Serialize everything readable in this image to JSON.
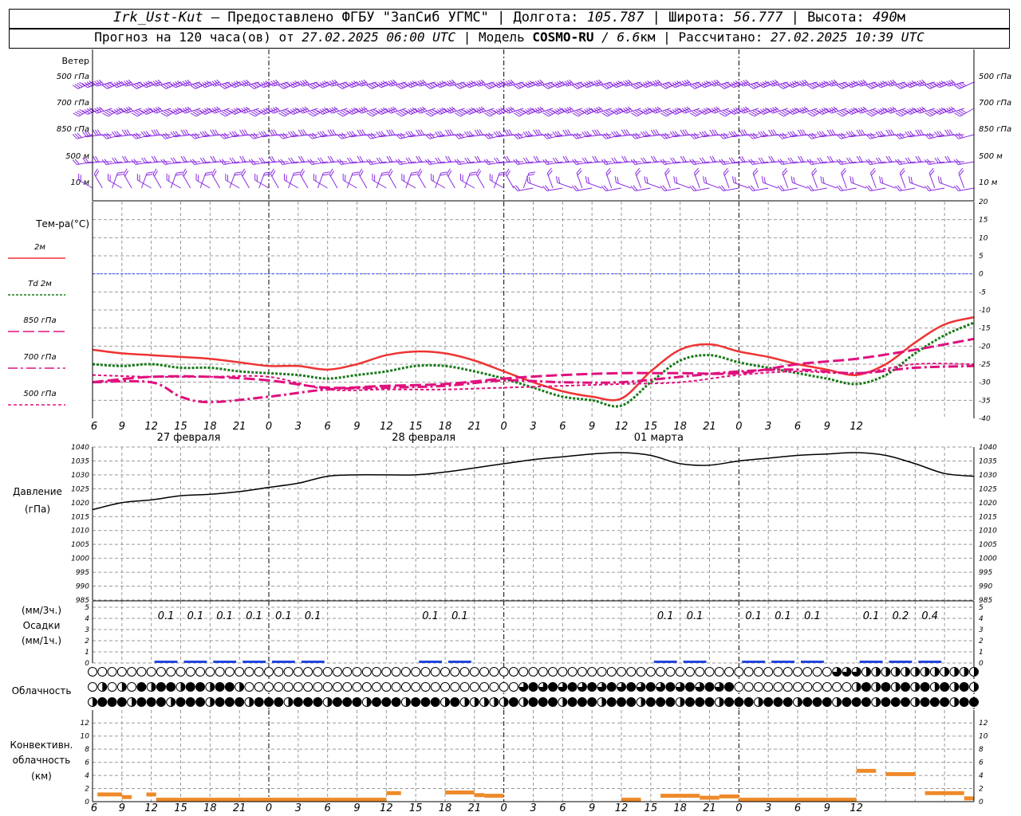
{
  "header": {
    "line1": {
      "station": "Irk_Ust-Kut",
      "provided": "– Предоставлено ФГБУ \"ЗапСиб УГМС\" | Долгота:",
      "lon": "105.787",
      "lat_label": "| Широта:",
      "lat": "56.777",
      "alt_label": "| Высота:",
      "alt": "490",
      "alt_unit": "м"
    },
    "line2": {
      "forecast": "Прогноз на 120 часа(ов) от",
      "init": "27.02.2025 06:00 UTC",
      "model_label": "| Модель",
      "model": "COSMO-RU",
      "res": "/ 6.6",
      "res_unit": "км",
      "calc_label": "| Рассчитано:",
      "calc": "27.02.2025 10:39 UTC"
    }
  },
  "hours": [
    "6",
    "9",
    "12",
    "15",
    "18",
    "21",
    "0",
    "3",
    "6",
    "9",
    "12",
    "15",
    "18",
    "21",
    "0",
    "3",
    "6",
    "9",
    "12",
    "15",
    "18",
    "21",
    "0",
    "3",
    "6",
    "9",
    "12"
  ],
  "dates": [
    "27 февраля",
    "28 февраля",
    "01 марта"
  ],
  "wind_panel": {
    "title": "Ветер",
    "levels": [
      "500 гПа",
      "700 гПа",
      "850 гПа",
      "500 м",
      "10  м"
    ]
  },
  "temp_panel": {
    "title": "Тем-ра(°C)",
    "legend": [
      {
        "label": "2м",
        "color": "#ee3333",
        "dash": ""
      },
      {
        "label": "Td  2м",
        "color": "#1a7a1a",
        "dash": "3,2"
      },
      {
        "label": "850 гПа",
        "color": "#e0107e",
        "dash": "14,5"
      },
      {
        "label": "700 гПа",
        "color": "#e0107e",
        "dash": "12,4,3,4"
      },
      {
        "label": "500 гПа",
        "color": "#e0107e",
        "dash": "4,3"
      }
    ],
    "ticks": [
      "20",
      "15",
      "10",
      "5",
      "0",
      "-5",
      "-10",
      "-15",
      "-20",
      "-25",
      "-30",
      "-35",
      "-40"
    ]
  },
  "pressure_panel": {
    "title": "Давление",
    "unit": "(гПа)",
    "ticks": [
      "1040",
      "1035",
      "1030",
      "1025",
      "1020",
      "1015",
      "1010",
      "1005",
      "1000",
      "995",
      "990",
      "985"
    ]
  },
  "precip_panel": {
    "title1": "(мм/3ч.)",
    "title2": "Осадки",
    "title3": "(мм/1ч.)",
    "ticks": [
      "5",
      "4",
      "3",
      "2",
      "1",
      "0"
    ],
    "labels": [
      {
        "h": 9,
        "v": "0.1"
      },
      {
        "h": 12,
        "v": "0.1"
      },
      {
        "h": 15,
        "v": "0.1"
      },
      {
        "h": 18,
        "v": "0.1"
      },
      {
        "h": 21,
        "v": "0.1"
      },
      {
        "h": 24,
        "v": "0.1"
      },
      {
        "h": 36,
        "v": "0.1"
      },
      {
        "h": 39,
        "v": "0.1"
      },
      {
        "h": 60,
        "v": "0.1"
      },
      {
        "h": 63,
        "v": "0.1"
      },
      {
        "h": 69,
        "v": "0.1"
      },
      {
        "h": 72,
        "v": "0.1"
      },
      {
        "h": 75,
        "v": "0.1"
      },
      {
        "h": 81,
        "v": "0.1"
      },
      {
        "h": 84,
        "v": "0.2"
      },
      {
        "h": 87,
        "v": "0.4"
      }
    ]
  },
  "cloud_panel": {
    "title": "Облачность"
  },
  "conv_panel": {
    "title1": "Конвективн.",
    "title2": "облачность",
    "title3": "(км)",
    "ticks": [
      "12",
      "10",
      "8",
      "6",
      "4",
      "2",
      "0"
    ]
  },
  "chart_data": [
    {
      "type": "line",
      "title": "Тем-ра(°C)",
      "x_hours_from_start": "0..78 step 1 (27.02 06 UTC .. 02.03 12 UTC)",
      "ylim": [
        -40,
        20
      ],
      "series": [
        {
          "name": "2м",
          "points": [
            [
              0,
              -21
            ],
            [
              3,
              -22
            ],
            [
              6,
              -22.5
            ],
            [
              9,
              -23
            ],
            [
              12,
              -23.5
            ],
            [
              15,
              -24.5
            ],
            [
              18,
              -25.5
            ],
            [
              21,
              -25.5
            ],
            [
              24,
              -26.5
            ],
            [
              27,
              -25
            ],
            [
              30,
              -22.5
            ],
            [
              33,
              -21.5
            ],
            [
              36,
              -22
            ],
            [
              39,
              -24
            ],
            [
              42,
              -27
            ],
            [
              45,
              -30
            ],
            [
              48,
              -32.5
            ],
            [
              51,
              -34
            ],
            [
              54,
              -34.5
            ],
            [
              57,
              -27
            ],
            [
              60,
              -21
            ],
            [
              63,
              -19.5
            ],
            [
              66,
              -21.5
            ],
            [
              69,
              -23
            ],
            [
              72,
              -25
            ],
            [
              75,
              -26.5
            ],
            [
              78,
              -28
            ],
            [
              81,
              -25
            ],
            [
              84,
              -19
            ],
            [
              87,
              -14
            ],
            [
              90,
              -12
            ]
          ]
        },
        {
          "name": "Td  2м",
          "points": [
            [
              0,
              -25
            ],
            [
              3,
              -25.5
            ],
            [
              6,
              -25
            ],
            [
              9,
              -26
            ],
            [
              12,
              -26
            ],
            [
              15,
              -27
            ],
            [
              18,
              -27.5
            ],
            [
              21,
              -28
            ],
            [
              24,
              -29
            ],
            [
              27,
              -28
            ],
            [
              30,
              -27
            ],
            [
              33,
              -25.5
            ],
            [
              36,
              -25.5
            ],
            [
              39,
              -27
            ],
            [
              42,
              -29
            ],
            [
              45,
              -31.5
            ],
            [
              48,
              -34
            ],
            [
              51,
              -35
            ],
            [
              54,
              -36.5
            ],
            [
              57,
              -30
            ],
            [
              60,
              -24
            ],
            [
              63,
              -22.5
            ],
            [
              66,
              -24.5
            ],
            [
              69,
              -26
            ],
            [
              72,
              -27.5
            ],
            [
              75,
              -29
            ],
            [
              78,
              -30.5
            ],
            [
              81,
              -28
            ],
            [
              84,
              -22
            ],
            [
              87,
              -17
            ],
            [
              90,
              -13.5
            ]
          ]
        },
        {
          "name": "850 гПа",
          "points": [
            [
              0,
              -30
            ],
            [
              6,
              -28.5
            ],
            [
              12,
              -28.5
            ],
            [
              18,
              -29.5
            ],
            [
              24,
              -31.5
            ],
            [
              30,
              -31
            ],
            [
              36,
              -30.5
            ],
            [
              42,
              -29
            ],
            [
              48,
              -28
            ],
            [
              54,
              -27.5
            ],
            [
              60,
              -27.5
            ],
            [
              66,
              -27.5
            ],
            [
              72,
              -25
            ],
            [
              78,
              -23.5
            ],
            [
              84,
              -21
            ],
            [
              90,
              -18
            ]
          ]
        },
        {
          "name": "700 гПа",
          "points": [
            [
              0,
              -30
            ],
            [
              6,
              -30
            ],
            [
              9,
              -34
            ],
            [
              12,
              -35.5
            ],
            [
              18,
              -34
            ],
            [
              24,
              -32
            ],
            [
              30,
              -31.5
            ],
            [
              36,
              -31
            ],
            [
              42,
              -29.5
            ],
            [
              48,
              -30
            ],
            [
              54,
              -30
            ],
            [
              60,
              -28.5
            ],
            [
              66,
              -27
            ],
            [
              72,
              -26.5
            ],
            [
              78,
              -27.5
            ],
            [
              84,
              -26
            ],
            [
              90,
              -25.5
            ]
          ]
        },
        {
          "name": "500 гПа",
          "points": [
            [
              0,
              -28
            ],
            [
              6,
              -28.5
            ],
            [
              12,
              -28.5
            ],
            [
              18,
              -28.5
            ],
            [
              24,
              -32
            ],
            [
              30,
              -32
            ],
            [
              36,
              -32
            ],
            [
              42,
              -31.5
            ],
            [
              48,
              -31
            ],
            [
              54,
              -30.5
            ],
            [
              60,
              -30
            ],
            [
              66,
              -28
            ],
            [
              72,
              -27
            ],
            [
              78,
              -27.5
            ],
            [
              84,
              -25
            ],
            [
              90,
              -25
            ]
          ]
        }
      ]
    },
    {
      "type": "line",
      "title": "Давление",
      "ylim": [
        985,
        1040
      ],
      "series": [
        {
          "name": "Давление",
          "points": [
            [
              0,
              1017.5
            ],
            [
              3,
              1020
            ],
            [
              6,
              1021
            ],
            [
              9,
              1022.5
            ],
            [
              12,
              1023
            ],
            [
              15,
              1024
            ],
            [
              18,
              1025.5
            ],
            [
              21,
              1027
            ],
            [
              24,
              1029.5
            ],
            [
              27,
              1030
            ],
            [
              30,
              1030
            ],
            [
              33,
              1030
            ],
            [
              36,
              1031
            ],
            [
              39,
              1032.5
            ],
            [
              42,
              1034
            ],
            [
              45,
              1035.5
            ],
            [
              48,
              1036.5
            ],
            [
              51,
              1037.5
            ],
            [
              54,
              1038
            ],
            [
              57,
              1037
            ],
            [
              60,
              1034
            ],
            [
              63,
              1033.5
            ],
            [
              66,
              1035
            ],
            [
              69,
              1036
            ],
            [
              72,
              1037
            ],
            [
              75,
              1037.5
            ],
            [
              78,
              1038
            ],
            [
              81,
              1037
            ],
            [
              84,
              1034
            ],
            [
              87,
              1030.5
            ],
            [
              90,
              1029.5
            ]
          ]
        }
      ]
    },
    {
      "type": "bar",
      "title": "Конвективн. облачность",
      "ylim": [
        0,
        13
      ],
      "bars": [
        {
          "h0": 0.5,
          "h1": 3,
          "v": 1.4
        },
        {
          "h0": 3,
          "h1": 4,
          "v": 1.0
        },
        {
          "h0": 5.5,
          "h1": 6.5,
          "v": 1.4
        },
        {
          "h0": 6.5,
          "h1": 30,
          "v": 0.6
        },
        {
          "h0": 30,
          "h1": 31.5,
          "v": 1.6
        },
        {
          "h0": 36,
          "h1": 39,
          "v": 1.7
        },
        {
          "h0": 39,
          "h1": 40,
          "v": 1.3
        },
        {
          "h0": 40,
          "h1": 42,
          "v": 1.2
        },
        {
          "h0": 54,
          "h1": 56,
          "v": 0.6
        },
        {
          "h0": 58,
          "h1": 62,
          "v": 1.2
        },
        {
          "h0": 62,
          "h1": 64,
          "v": 0.9
        },
        {
          "h0": 64,
          "h1": 66,
          "v": 1.1
        },
        {
          "h0": 66,
          "h1": 78,
          "v": 0.6
        },
        {
          "h0": 78,
          "h1": 80,
          "v": 5.0
        },
        {
          "h0": 81,
          "h1": 84,
          "v": 4.5
        },
        {
          "h0": 85,
          "h1": 89,
          "v": 1.6
        },
        {
          "h0": 89,
          "h1": 90,
          "v": 0.8
        }
      ]
    }
  ],
  "colors": {
    "wind": "#8a2be2",
    "grid": "#999999",
    "zero": "#3355ff",
    "precip": "#2244dd",
    "conv": "#ee8a2a"
  }
}
